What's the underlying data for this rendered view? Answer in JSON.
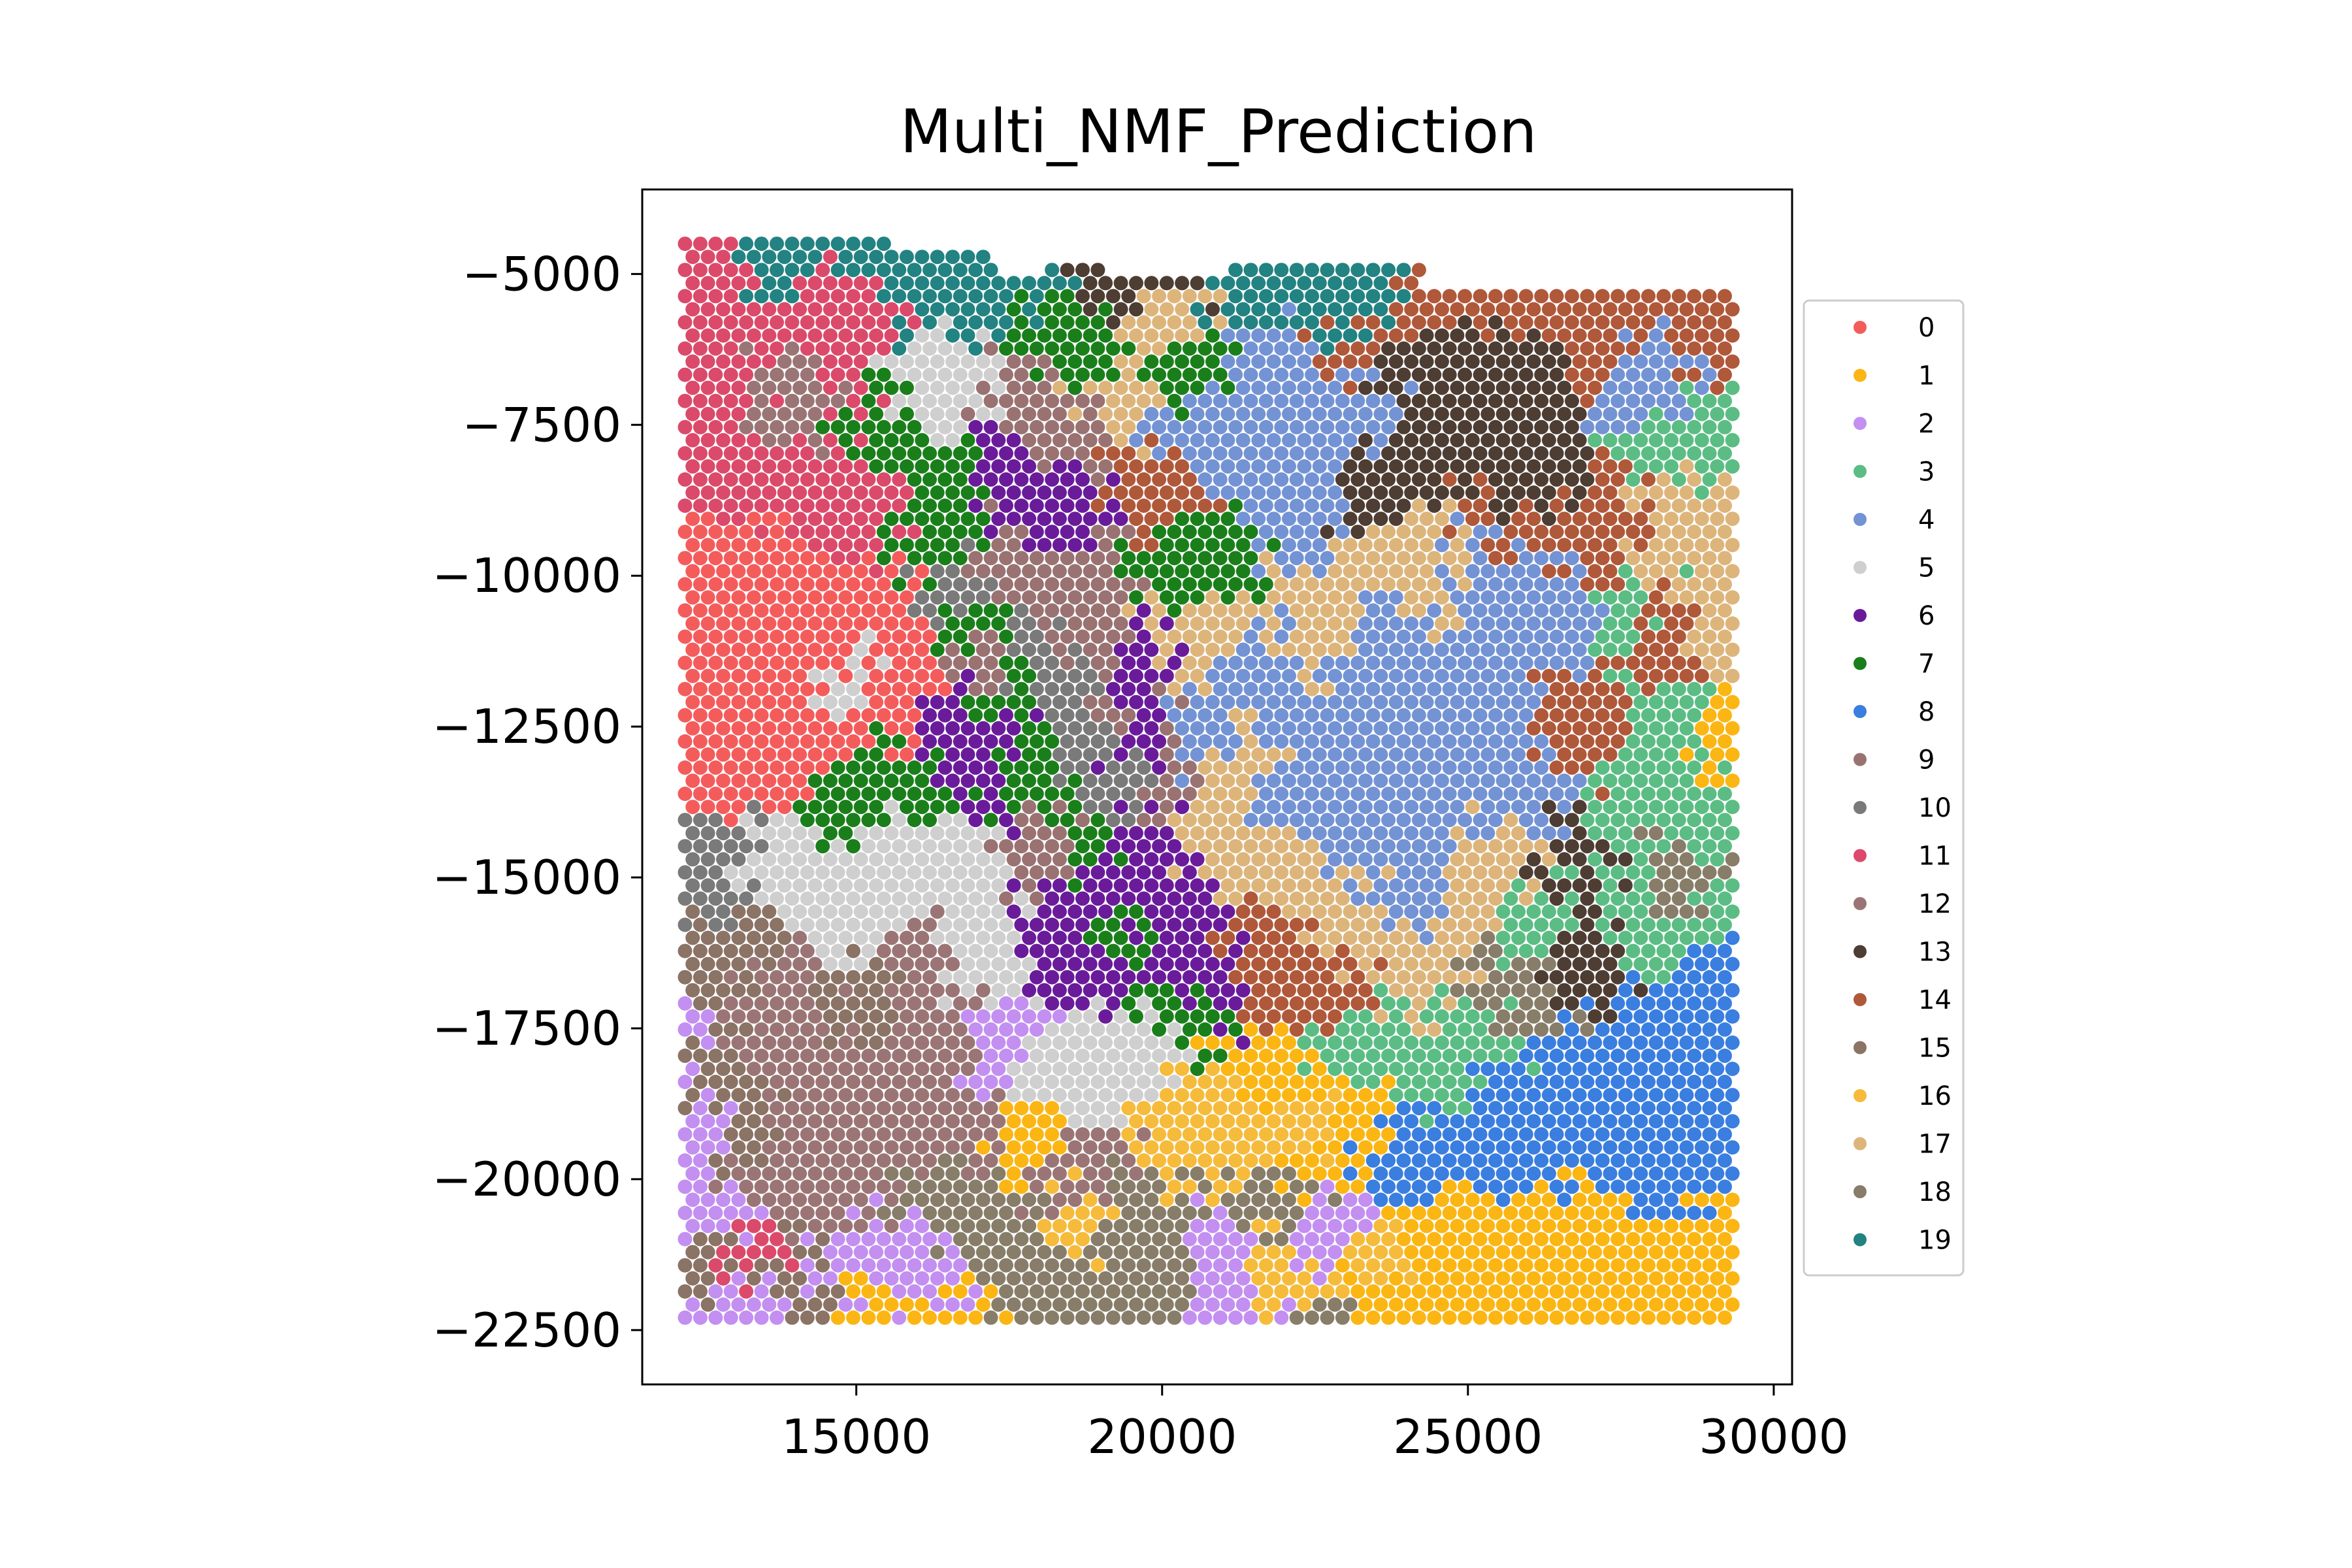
{
  "chart_data": {
    "type": "scatter",
    "title": "Multi_NMF_Prediction",
    "xlabel": "",
    "ylabel": "",
    "xlim": [
      11500,
      30300
    ],
    "ylim": [
      -23400,
      -3600
    ],
    "xticks": [
      15000,
      20000,
      25000,
      30000
    ],
    "xtick_labels": [
      "15000",
      "20000",
      "25000",
      "30000"
    ],
    "yticks": [
      -5000,
      -7500,
      -10000,
      -12500,
      -15000,
      -17500,
      -20000,
      -22500
    ],
    "ytick_labels": [
      "−5000",
      "−7500",
      "−10000",
      "−12500",
      "−15000",
      "−17500",
      "−20000",
      "−22500"
    ],
    "grid": false,
    "legend_position": "right, outside plot",
    "spot_grid": {
      "x_range": [
        12200,
        29400
      ],
      "y_range": [
        -22500,
        -4500
      ]
    },
    "clusters": [
      {
        "name": "0",
        "color": "#f45c5c",
        "spots": [
          [
            12700,
            -10500
          ],
          [
            13200,
            -11200
          ],
          [
            13500,
            -12300
          ],
          [
            14000,
            -10300
          ],
          [
            14500,
            -11600
          ],
          [
            15200,
            -10800
          ],
          [
            12800,
            -13100
          ],
          [
            14200,
            -12900
          ],
          [
            13600,
            -9500
          ],
          [
            15600,
            -11900
          ]
        ]
      },
      {
        "name": "1",
        "color": "#fbb614",
        "spots": [
          [
            24800,
            -21500
          ],
          [
            25900,
            -22100
          ],
          [
            27100,
            -21800
          ],
          [
            28300,
            -22200
          ],
          [
            29100,
            -21200
          ],
          [
            23700,
            -22000
          ],
          [
            24400,
            -20900
          ],
          [
            22300,
            -19900
          ],
          [
            23000,
            -19000
          ],
          [
            21600,
            -18400
          ],
          [
            17800,
            -19400
          ],
          [
            29400,
            -12700
          ],
          [
            28700,
            -20800
          ],
          [
            26400,
            -21000
          ],
          [
            16600,
            -22400
          ],
          [
            15400,
            -22100
          ]
        ]
      },
      {
        "name": "2",
        "color": "#c38ff0",
        "spots": [
          [
            12300,
            -17800
          ],
          [
            12400,
            -19200
          ],
          [
            12600,
            -20600
          ],
          [
            13000,
            -22300
          ],
          [
            15600,
            -21200
          ],
          [
            16300,
            -21700
          ],
          [
            15800,
            -22200
          ],
          [
            14800,
            -21600
          ],
          [
            17800,
            -17800
          ],
          [
            21000,
            -21700
          ],
          [
            22600,
            -21000
          ],
          [
            21400,
            -22300
          ]
        ]
      },
      {
        "name": "3",
        "color": "#5bbd84",
        "spots": [
          [
            27200,
            -14500
          ],
          [
            27900,
            -13300
          ],
          [
            28500,
            -12500
          ],
          [
            29100,
            -13900
          ],
          [
            27600,
            -15500
          ],
          [
            28800,
            -16000
          ],
          [
            25100,
            -17400
          ],
          [
            24100,
            -17900
          ],
          [
            23300,
            -17700
          ],
          [
            27500,
            -10700
          ],
          [
            28600,
            -8000
          ],
          [
            29200,
            -7400
          ],
          [
            26300,
            -15600
          ]
        ]
      },
      {
        "name": "4",
        "color": "#7393d4",
        "spots": [
          [
            21500,
            -11600
          ],
          [
            22300,
            -12400
          ],
          [
            23600,
            -11200
          ],
          [
            25000,
            -12100
          ],
          [
            25800,
            -13600
          ],
          [
            22100,
            -13700
          ],
          [
            23300,
            -14600
          ],
          [
            24300,
            -13600
          ],
          [
            20600,
            -7600
          ],
          [
            22000,
            -8800
          ],
          [
            23100,
            -7300
          ],
          [
            21700,
            -6500
          ],
          [
            25300,
            -9700
          ],
          [
            27900,
            -6500
          ],
          [
            26500,
            -10700
          ],
          [
            24100,
            -15200
          ],
          [
            20800,
            -12900
          ]
        ]
      },
      {
        "name": "5",
        "color": "#cfcfcf",
        "spots": [
          [
            14100,
            -14900
          ],
          [
            14700,
            -15800
          ],
          [
            15800,
            -14300
          ],
          [
            16600,
            -15000
          ],
          [
            17200,
            -16400
          ],
          [
            18600,
            -18600
          ],
          [
            19600,
            -18000
          ],
          [
            13700,
            -15300
          ],
          [
            16000,
            -7000
          ],
          [
            16700,
            -6800
          ],
          [
            14600,
            -11700
          ],
          [
            15300,
            -15500
          ],
          [
            19200,
            -17500
          ],
          [
            18000,
            -18100
          ]
        ]
      },
      {
        "name": "6",
        "color": "#6a1b9a",
        "spots": [
          [
            18400,
            -16100
          ],
          [
            19100,
            -16800
          ],
          [
            19800,
            -15700
          ],
          [
            20600,
            -16600
          ],
          [
            19500,
            -11700
          ],
          [
            19400,
            -12800
          ],
          [
            17300,
            -13100
          ],
          [
            16800,
            -12500
          ],
          [
            18000,
            -8600
          ],
          [
            17400,
            -8100
          ],
          [
            19900,
            -14600
          ],
          [
            18800,
            -15300
          ]
        ]
      },
      {
        "name": "7",
        "color": "#1a7f1a",
        "spots": [
          [
            15400,
            -7200
          ],
          [
            16200,
            -8100
          ],
          [
            16600,
            -9300
          ],
          [
            16900,
            -10800
          ],
          [
            17200,
            -12100
          ],
          [
            17800,
            -13300
          ],
          [
            18500,
            -14600
          ],
          [
            19300,
            -15900
          ],
          [
            20200,
            -17100
          ],
          [
            18100,
            -6000
          ],
          [
            19200,
            -6400
          ],
          [
            20400,
            -6600
          ],
          [
            15800,
            -13700
          ],
          [
            14700,
            -13600
          ],
          [
            20700,
            -9700
          ]
        ]
      },
      {
        "name": "8",
        "color": "#3a7ee0",
        "spots": [
          [
            27500,
            -18100
          ],
          [
            28300,
            -17300
          ],
          [
            29000,
            -18500
          ],
          [
            28000,
            -19400
          ],
          [
            26800,
            -19100
          ],
          [
            29200,
            -16600
          ],
          [
            25400,
            -19500
          ],
          [
            26400,
            -18400
          ],
          [
            28700,
            -20300
          ],
          [
            24000,
            -19600
          ]
        ]
      },
      {
        "name": "9",
        "color": "#9a7272",
        "spots": [
          [
            17500,
            -9800
          ],
          [
            18300,
            -10400
          ],
          [
            18800,
            -11300
          ],
          [
            19300,
            -12300
          ],
          [
            20000,
            -13300
          ],
          [
            17800,
            -7100
          ],
          [
            18300,
            -7700
          ],
          [
            17000,
            -11400
          ],
          [
            18400,
            -14600
          ]
        ]
      },
      {
        "name": "10",
        "color": "#7a7a7a",
        "spots": [
          [
            17700,
            -10900
          ],
          [
            18500,
            -11700
          ],
          [
            19000,
            -12700
          ],
          [
            19500,
            -13200
          ],
          [
            12400,
            -15200
          ],
          [
            12700,
            -14900
          ],
          [
            16800,
            -10300
          ]
        ]
      },
      {
        "name": "11",
        "color": "#db4a6a",
        "spots": [
          [
            12400,
            -5300
          ],
          [
            12600,
            -6600
          ],
          [
            12800,
            -7900
          ],
          [
            13400,
            -8600
          ],
          [
            14100,
            -9100
          ],
          [
            13800,
            -6000
          ],
          [
            15000,
            -6700
          ],
          [
            15100,
            -8800
          ],
          [
            14700,
            -5100
          ],
          [
            13000,
            -21300
          ]
        ]
      },
      {
        "name": "12",
        "color": "#9b7575",
        "spots": [
          [
            13400,
            -17400
          ],
          [
            14300,
            -18200
          ],
          [
            15200,
            -18900
          ],
          [
            16200,
            -17300
          ],
          [
            14700,
            -20200
          ],
          [
            13200,
            -19700
          ],
          [
            15800,
            -16500
          ],
          [
            16700,
            -19200
          ],
          [
            14000,
            -16400
          ],
          [
            13900,
            -6800
          ],
          [
            18500,
            -19800
          ]
        ]
      },
      {
        "name": "13",
        "color": "#4e3d33",
        "spots": [
          [
            24500,
            -6600
          ],
          [
            25200,
            -7500
          ],
          [
            25800,
            -8600
          ],
          [
            26200,
            -6400
          ],
          [
            26800,
            -16200
          ],
          [
            26900,
            -15100
          ],
          [
            27000,
            -14500
          ],
          [
            19000,
            -5000
          ],
          [
            20100,
            -5000
          ],
          [
            23600,
            -8300
          ]
        ]
      },
      {
        "name": "14",
        "color": "#b0583a",
        "spots": [
          [
            26300,
            -5500
          ],
          [
            27000,
            -6000
          ],
          [
            28100,
            -5400
          ],
          [
            29100,
            -5800
          ],
          [
            22900,
            -6200
          ],
          [
            24100,
            -5300
          ],
          [
            27400,
            -9300
          ],
          [
            28200,
            -11100
          ],
          [
            27000,
            -12600
          ],
          [
            21800,
            -16500
          ],
          [
            22700,
            -16800
          ],
          [
            20100,
            -8500
          ],
          [
            25600,
            -9100
          ]
        ]
      },
      {
        "name": "15",
        "color": "#8b7365",
        "spots": [
          [
            12300,
            -16400
          ],
          [
            12700,
            -18100
          ],
          [
            13100,
            -19600
          ],
          [
            12500,
            -21400
          ],
          [
            14200,
            -21800
          ],
          [
            13300,
            -16000
          ],
          [
            15000,
            -17000
          ]
        ]
      },
      {
        "name": "16",
        "color": "#f6bb3b",
        "spots": [
          [
            22300,
            -19300
          ],
          [
            21300,
            -19000
          ],
          [
            20300,
            -18900
          ],
          [
            18800,
            -20800
          ],
          [
            21800,
            -21700
          ],
          [
            23500,
            -21300
          ]
        ]
      },
      {
        "name": "17",
        "color": "#ddb57b",
        "spots": [
          [
            22000,
            -14700
          ],
          [
            23200,
            -15800
          ],
          [
            24300,
            -16700
          ],
          [
            21200,
            -13100
          ],
          [
            20600,
            -14300
          ],
          [
            25300,
            -14900
          ],
          [
            19400,
            -6800
          ],
          [
            20000,
            -5900
          ],
          [
            22600,
            -10800
          ],
          [
            24200,
            -9900
          ],
          [
            28100,
            -9300
          ],
          [
            29100,
            -10900
          ],
          [
            28500,
            -8700
          ],
          [
            20700,
            -10900
          ]
        ]
      },
      {
        "name": "18",
        "color": "#887d69",
        "spots": [
          [
            17300,
            -21000
          ],
          [
            18300,
            -21700
          ],
          [
            19300,
            -20800
          ],
          [
            20000,
            -21700
          ],
          [
            22200,
            -20300
          ],
          [
            22800,
            -22300
          ],
          [
            16600,
            -20500
          ],
          [
            28300,
            -15300
          ],
          [
            25600,
            -17000
          ]
        ]
      },
      {
        "name": "19",
        "color": "#238282",
        "spots": [
          [
            13900,
            -4700
          ],
          [
            14900,
            -4600
          ],
          [
            15700,
            -4800
          ],
          [
            16400,
            -5100
          ],
          [
            17000,
            -5500
          ],
          [
            17800,
            -5300
          ],
          [
            18200,
            -4800
          ],
          [
            21500,
            -5000
          ],
          [
            22400,
            -5200
          ],
          [
            22900,
            -5700
          ],
          [
            23600,
            -5000
          ]
        ]
      }
    ]
  }
}
